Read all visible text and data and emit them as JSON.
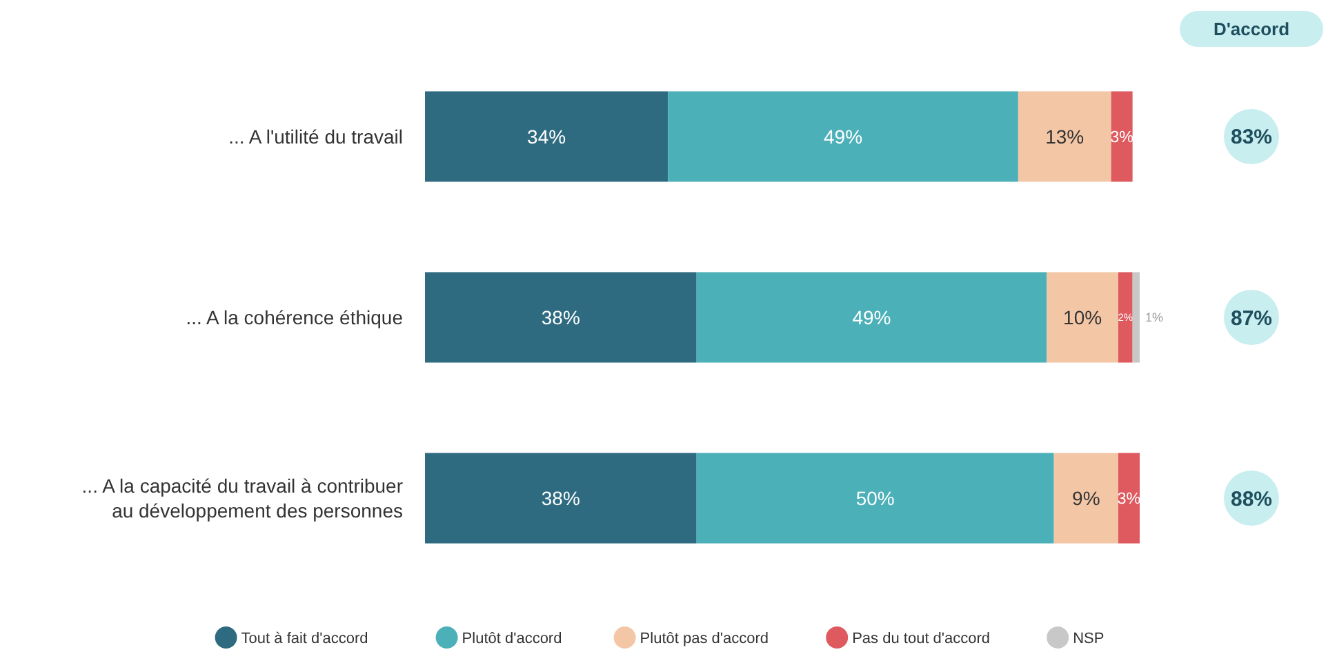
{
  "chart_data": {
    "type": "bar",
    "orientation": "horizontal",
    "stacked": true,
    "tick_labels": "y",
    "legend": "bottom",
    "xlim": [
      0,
      100
    ],
    "categories": [
      "... A l'utilité du travail",
      "... A la cohérence éthique",
      "... A la capacité du travail à contribuer au développement des personnes"
    ],
    "series": [
      {
        "name": "Tout à fait d'accord",
        "color": "#2e6b80",
        "values": [
          34,
          38,
          38
        ],
        "value_labels": [
          "34%",
          "38%",
          "38%"
        ]
      },
      {
        "name": "Plutôt d'accord",
        "color": "#4cb0b8",
        "values": [
          49,
          49,
          50
        ],
        "value_labels": [
          "49%",
          "49%",
          "50%"
        ]
      },
      {
        "name": "Plutôt pas d'accord",
        "color": "#f3c6a6",
        "values": [
          13,
          10,
          9
        ],
        "value_labels": [
          "13%",
          "10%",
          "9%"
        ]
      },
      {
        "name": "Pas du tout d'accord",
        "color": "#de5a5e",
        "values": [
          3,
          2,
          3
        ],
        "value_labels": [
          "3%",
          "2%",
          "3%"
        ]
      },
      {
        "name": "NSP",
        "color": "#c8c8c8",
        "values": [
          null,
          1,
          null
        ],
        "value_labels": [
          null,
          "1%",
          null
        ]
      }
    ],
    "annotations": [
      "D'accord",
      "83%",
      "87%",
      "88%"
    ]
  }
}
